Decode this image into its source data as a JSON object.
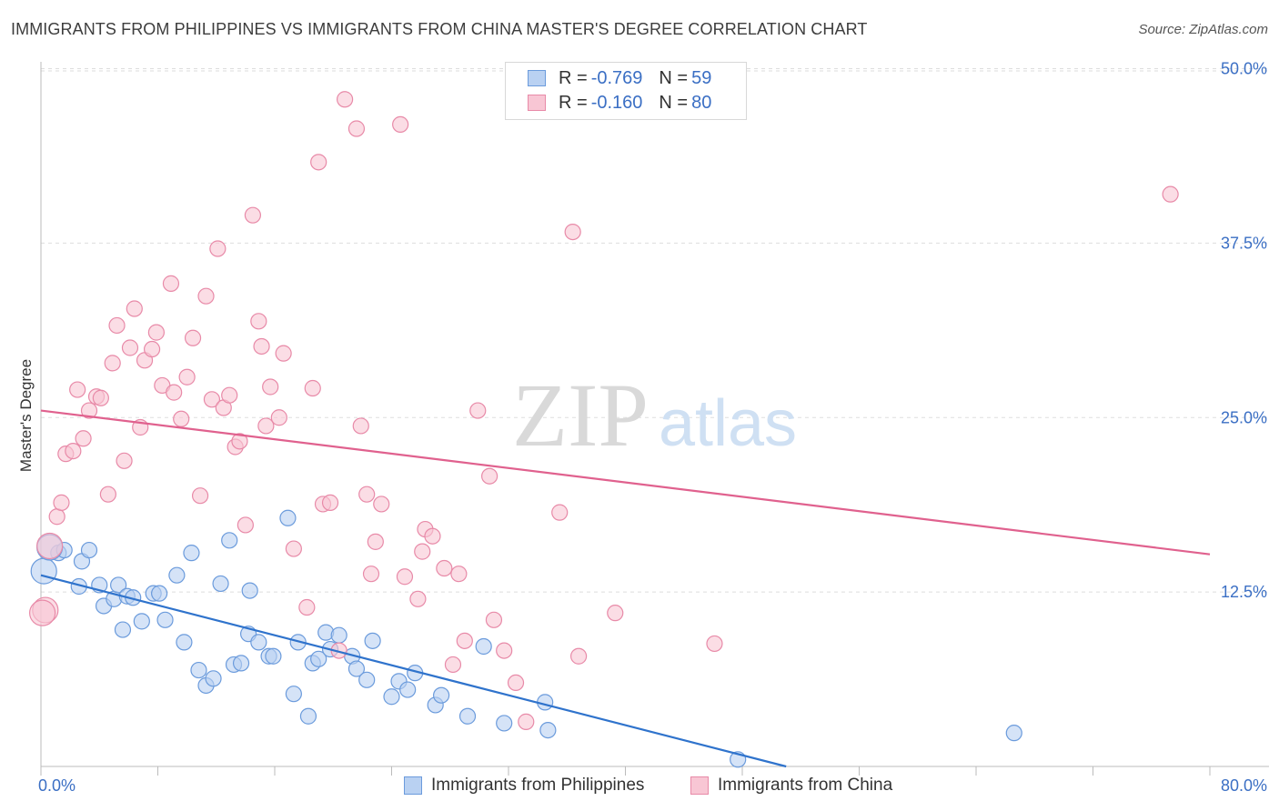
{
  "header": {
    "title": "IMMIGRANTS FROM PHILIPPINES VS IMMIGRANTS FROM CHINA MASTER'S DEGREE CORRELATION CHART",
    "source": "Source: ZipAtlas.com"
  },
  "legend": {
    "rows": [
      {
        "r_label": "R = ",
        "r_value": "-0.769",
        "n_label": "N = ",
        "n_value": "59"
      },
      {
        "r_label": "R = ",
        "r_value": "-0.160",
        "n_label": "N = ",
        "n_value": "80"
      }
    ],
    "bottom": [
      {
        "label": "Immigrants from Philippines"
      },
      {
        "label": "Immigrants from China"
      }
    ]
  },
  "watermark": {
    "part1": "ZIP",
    "part2": "atlas"
  },
  "colors": {
    "philippines_fill": "#b9d1f2",
    "philippines_stroke": "#6b9bdc",
    "philippines_line": "#2f73cc",
    "china_fill": "#f8c6d4",
    "china_stroke": "#e88aa8",
    "china_line": "#e0618e",
    "axis_text": "#3b6fc4",
    "grid": "#dddddd"
  },
  "chart_data": {
    "type": "scatter",
    "title": "IMMIGRANTS FROM PHILIPPINES VS IMMIGRANTS FROM CHINA MASTER'S DEGREE CORRELATION CHART",
    "xlabel": "",
    "ylabel": "Master's Degree",
    "xlim": [
      0,
      80
    ],
    "ylim": [
      0,
      52
    ],
    "x_tick_labels": [
      "0.0%",
      "80.0%"
    ],
    "y_ticks": [
      12.5,
      25.0,
      37.5,
      50.0
    ],
    "y_tick_labels": [
      "12.5%",
      "25.0%",
      "37.5%",
      "50.0%"
    ],
    "grid": true,
    "series": [
      {
        "name": "Immigrants from Philippines",
        "R": -0.769,
        "N": 59,
        "trend": {
          "x": [
            0,
            51
          ],
          "y": [
            13.7,
            0
          ]
        },
        "points": [
          [
            0.2,
            14.0
          ],
          [
            1.2,
            15.3
          ],
          [
            1.6,
            15.5
          ],
          [
            2.6,
            12.9
          ],
          [
            2.8,
            14.7
          ],
          [
            3.3,
            15.5
          ],
          [
            4.0,
            13.0
          ],
          [
            4.3,
            11.5
          ],
          [
            5.0,
            12.0
          ],
          [
            5.3,
            13.0
          ],
          [
            5.6,
            9.8
          ],
          [
            5.9,
            12.2
          ],
          [
            6.3,
            12.1
          ],
          [
            6.9,
            10.4
          ],
          [
            7.7,
            12.4
          ],
          [
            8.1,
            12.4
          ],
          [
            8.5,
            10.5
          ],
          [
            9.3,
            13.7
          ],
          [
            9.8,
            8.9
          ],
          [
            10.3,
            15.3
          ],
          [
            10.8,
            6.9
          ],
          [
            11.3,
            5.8
          ],
          [
            11.8,
            6.3
          ],
          [
            12.3,
            13.1
          ],
          [
            12.9,
            16.2
          ],
          [
            13.2,
            7.3
          ],
          [
            13.7,
            7.4
          ],
          [
            14.3,
            12.6
          ],
          [
            14.2,
            9.5
          ],
          [
            14.9,
            8.9
          ],
          [
            15.6,
            7.9
          ],
          [
            15.9,
            7.9
          ],
          [
            16.9,
            17.8
          ],
          [
            17.3,
            5.2
          ],
          [
            17.6,
            8.9
          ],
          [
            18.3,
            3.6
          ],
          [
            18.6,
            7.4
          ],
          [
            19.0,
            7.7
          ],
          [
            19.5,
            9.6
          ],
          [
            19.8,
            8.4
          ],
          [
            20.4,
            9.4
          ],
          [
            21.3,
            7.9
          ],
          [
            21.6,
            7.0
          ],
          [
            22.3,
            6.2
          ],
          [
            22.7,
            9.0
          ],
          [
            24.0,
            5.0
          ],
          [
            24.5,
            6.1
          ],
          [
            25.1,
            5.5
          ],
          [
            25.6,
            6.7
          ],
          [
            27.0,
            4.4
          ],
          [
            27.4,
            5.1
          ],
          [
            29.2,
            3.6
          ],
          [
            30.3,
            8.6
          ],
          [
            31.7,
            3.1
          ],
          [
            34.5,
            4.6
          ],
          [
            34.7,
            2.6
          ],
          [
            47.7,
            0.5
          ],
          [
            66.6,
            2.4
          ],
          [
            0.6,
            15.7
          ]
        ]
      },
      {
        "name": "Immigrants from China",
        "R": -0.16,
        "N": 80,
        "trend": {
          "x": [
            0,
            80
          ],
          "y": [
            25.5,
            15.2
          ]
        },
        "points": [
          [
            0.3,
            11.2
          ],
          [
            0.6,
            15.8
          ],
          [
            1.1,
            17.9
          ],
          [
            1.4,
            18.9
          ],
          [
            1.7,
            22.4
          ],
          [
            2.2,
            22.6
          ],
          [
            2.5,
            27.0
          ],
          [
            2.9,
            23.5
          ],
          [
            3.3,
            25.5
          ],
          [
            3.8,
            26.5
          ],
          [
            4.1,
            26.4
          ],
          [
            4.6,
            19.5
          ],
          [
            4.9,
            28.9
          ],
          [
            5.2,
            31.6
          ],
          [
            5.7,
            21.9
          ],
          [
            6.1,
            30.0
          ],
          [
            6.4,
            32.8
          ],
          [
            6.8,
            24.3
          ],
          [
            7.1,
            29.1
          ],
          [
            7.6,
            29.9
          ],
          [
            7.9,
            31.1
          ],
          [
            8.3,
            27.3
          ],
          [
            8.9,
            34.6
          ],
          [
            9.1,
            26.8
          ],
          [
            9.6,
            24.9
          ],
          [
            10.0,
            27.9
          ],
          [
            10.4,
            30.7
          ],
          [
            10.9,
            19.4
          ],
          [
            11.3,
            33.7
          ],
          [
            11.7,
            26.3
          ],
          [
            12.1,
            37.1
          ],
          [
            12.5,
            25.7
          ],
          [
            12.9,
            26.6
          ],
          [
            13.3,
            22.9
          ],
          [
            13.6,
            23.3
          ],
          [
            14.0,
            17.3
          ],
          [
            14.5,
            39.5
          ],
          [
            14.9,
            31.9
          ],
          [
            15.1,
            30.1
          ],
          [
            15.4,
            24.4
          ],
          [
            15.7,
            27.2
          ],
          [
            16.3,
            25.0
          ],
          [
            16.6,
            29.6
          ],
          [
            17.3,
            15.6
          ],
          [
            18.2,
            11.4
          ],
          [
            18.6,
            27.1
          ],
          [
            19.0,
            43.3
          ],
          [
            19.3,
            18.8
          ],
          [
            19.8,
            18.9
          ],
          [
            20.4,
            8.3
          ],
          [
            20.8,
            47.8
          ],
          [
            21.6,
            45.7
          ],
          [
            21.9,
            24.4
          ],
          [
            22.3,
            19.5
          ],
          [
            22.6,
            13.8
          ],
          [
            22.9,
            16.1
          ],
          [
            23.3,
            18.8
          ],
          [
            24.6,
            46.0
          ],
          [
            24.9,
            13.6
          ],
          [
            25.8,
            12.0
          ],
          [
            26.1,
            15.4
          ],
          [
            26.3,
            17.0
          ],
          [
            26.8,
            16.5
          ],
          [
            27.6,
            14.2
          ],
          [
            28.2,
            7.3
          ],
          [
            28.6,
            13.8
          ],
          [
            29.0,
            9.0
          ],
          [
            29.9,
            25.5
          ],
          [
            30.7,
            20.8
          ],
          [
            31.0,
            10.5
          ],
          [
            31.7,
            8.3
          ],
          [
            32.5,
            6.0
          ],
          [
            33.2,
            3.2
          ],
          [
            35.5,
            18.2
          ],
          [
            36.4,
            38.3
          ],
          [
            36.8,
            7.9
          ],
          [
            39.3,
            11.0
          ],
          [
            46.1,
            8.8
          ],
          [
            77.3,
            41.0
          ],
          [
            0.1,
            11.0
          ]
        ]
      }
    ]
  }
}
